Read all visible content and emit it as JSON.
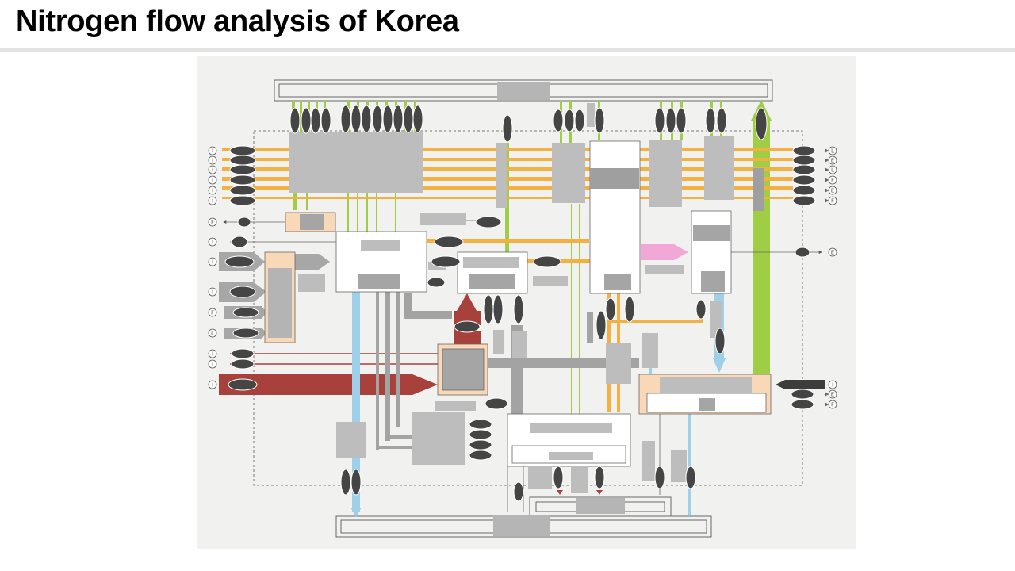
{
  "title": "Nitrogen flow analysis of Korea",
  "diagram": {
    "left_labels": [
      "I",
      "I",
      "I",
      "I",
      "I",
      "I",
      "F",
      "I",
      "I",
      "I",
      "F",
      "L",
      "I",
      "I",
      "I"
    ],
    "right_labels": [
      "L",
      "E",
      "L",
      "F",
      "E",
      "F",
      "E",
      "I",
      "E",
      "F"
    ],
    "colors": {
      "orange": "#f5b042",
      "green": "#9fcd45",
      "blue": "#9fd0ea",
      "red": "#a8403c",
      "pink": "#f2a8d6",
      "peach": "#f9d8b8",
      "gray_box": "#bdbdbd",
      "dark_oval": "#454545",
      "frame_bg": "#f1f1f0"
    }
  }
}
